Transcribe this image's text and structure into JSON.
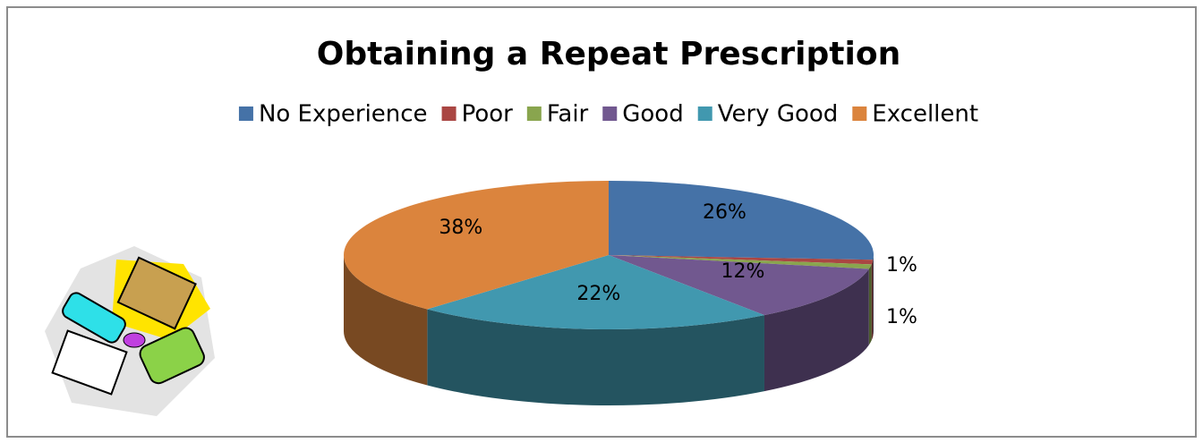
{
  "chart_data": {
    "type": "pie3d",
    "title": "Obtaining a Repeat Prescription",
    "categories": [
      "No Experience",
      "Poor",
      "Fair",
      "Good",
      "Very Good",
      "Excellent"
    ],
    "values": [
      26,
      1,
      1,
      12,
      22,
      38
    ],
    "value_labels": [
      "26%",
      "1%",
      "1%",
      "12%",
      "22%",
      "38%"
    ],
    "colors": [
      "#4572a7",
      "#aa4643",
      "#89a54e",
      "#71588f",
      "#4198af",
      "#db843d"
    ],
    "legend": "top"
  }
}
